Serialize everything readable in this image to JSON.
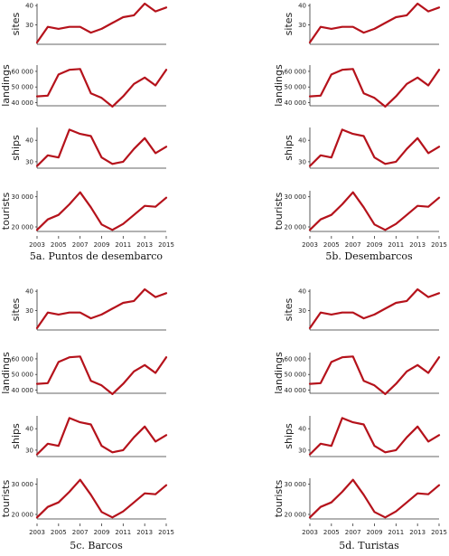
{
  "x_years": [
    2003,
    2004,
    2005,
    2006,
    2007,
    2008,
    2009,
    2010,
    2011,
    2012,
    2013,
    2014,
    2015
  ],
  "x_tick_labels": [
    "2003",
    "2005",
    "2007",
    "2009",
    "2011",
    "2013",
    "2015"
  ],
  "colors": {
    "line": "#b5121b",
    "axis": "#333333"
  },
  "chart_data": [
    {
      "id": "5a",
      "type": "line",
      "caption": "5a. Puntos de desembarco",
      "panels": [
        {
          "ylabel": "sites",
          "ylim": [
            20,
            41
          ],
          "yticks": [
            "30",
            "40"
          ],
          "series": [
            {
              "values": [
                21,
                29,
                28,
                29,
                29,
                26,
                28,
                31,
                34,
                35,
                41,
                37,
                39
              ]
            }
          ]
        },
        {
          "ylabel": "landings",
          "ylim": [
            38000,
            64000
          ],
          "yticks": [
            "40 000",
            "50 000",
            "60 000"
          ],
          "series": [
            {
              "values": [
                44000,
                44500,
                58000,
                61000,
                61500,
                46000,
                43000,
                37500,
                44000,
                52000,
                56000,
                51000,
                61000
              ]
            }
          ]
        },
        {
          "ylabel": "ships",
          "ylim": [
            27,
            46
          ],
          "yticks": [
            "30",
            "40"
          ],
          "series": [
            {
              "values": [
                28,
                33,
                32,
                45,
                43,
                42,
                32,
                29,
                30,
                36,
                41,
                34,
                37
              ]
            }
          ]
        },
        {
          "ylabel": "tourists",
          "ylim": [
            18500,
            32000
          ],
          "yticks": [
            "20 000",
            "30 000"
          ],
          "series": [
            {
              "values": [
                19000,
                22500,
                24000,
                27500,
                31500,
                26500,
                20800,
                19000,
                21000,
                24000,
                27000,
                26700,
                29700
              ]
            }
          ]
        }
      ]
    },
    {
      "id": "5b",
      "type": "line",
      "caption": "5b. Desembarcos",
      "panels": [
        {
          "ylabel": "sites",
          "ylim": [
            20,
            41
          ],
          "yticks": [
            "30",
            "40"
          ],
          "series": [
            {
              "values": [
                21,
                29,
                28,
                29,
                29,
                26,
                28,
                31,
                34,
                35,
                41,
                37,
                39
              ]
            }
          ]
        },
        {
          "ylabel": "landings",
          "ylim": [
            38000,
            64000
          ],
          "yticks": [
            "40 000",
            "50 000",
            "60 000"
          ],
          "series": [
            {
              "values": [
                44000,
                44500,
                58000,
                61000,
                61500,
                46000,
                43000,
                37500,
                44000,
                52000,
                56000,
                51000,
                61000
              ]
            }
          ]
        },
        {
          "ylabel": "ships",
          "ylim": [
            27,
            46
          ],
          "yticks": [
            "30",
            "40"
          ],
          "series": [
            {
              "values": [
                28,
                33,
                32,
                45,
                43,
                42,
                32,
                29,
                30,
                36,
                41,
                34,
                37
              ]
            }
          ]
        },
        {
          "ylabel": "tourists",
          "ylim": [
            18500,
            32000
          ],
          "yticks": [
            "20 000",
            "30 000"
          ],
          "series": [
            {
              "values": [
                19000,
                22500,
                24000,
                27500,
                31500,
                26500,
                20800,
                19000,
                21000,
                24000,
                27000,
                26700,
                29700
              ]
            }
          ]
        }
      ]
    },
    {
      "id": "5c",
      "type": "line",
      "caption": "5c. Barcos",
      "panels": [
        {
          "ylabel": "sites",
          "ylim": [
            20,
            41
          ],
          "yticks": [
            "30",
            "40"
          ],
          "series": [
            {
              "values": [
                21,
                29,
                28,
                29,
                29,
                26,
                28,
                31,
                34,
                35,
                41,
                37,
                39
              ]
            }
          ]
        },
        {
          "ylabel": "landings",
          "ylim": [
            38000,
            64000
          ],
          "yticks": [
            "40 000",
            "50 000",
            "60 000"
          ],
          "series": [
            {
              "values": [
                44000,
                44500,
                58000,
                61000,
                61500,
                46000,
                43000,
                37500,
                44000,
                52000,
                56000,
                51000,
                61000
              ]
            }
          ]
        },
        {
          "ylabel": "ships",
          "ylim": [
            27,
            46
          ],
          "yticks": [
            "30",
            "40"
          ],
          "series": [
            {
              "values": [
                28,
                33,
                32,
                45,
                43,
                42,
                32,
                29,
                30,
                36,
                41,
                34,
                37
              ]
            }
          ]
        },
        {
          "ylabel": "tourists",
          "ylim": [
            18500,
            32000
          ],
          "yticks": [
            "20 000",
            "30 000"
          ],
          "series": [
            {
              "values": [
                19000,
                22500,
                24000,
                27500,
                31500,
                26500,
                20800,
                19000,
                21000,
                24000,
                27000,
                26700,
                29700
              ]
            }
          ]
        }
      ]
    },
    {
      "id": "5d",
      "type": "line",
      "caption": "5d. Turistas",
      "panels": [
        {
          "ylabel": "sites",
          "ylim": [
            20,
            41
          ],
          "yticks": [
            "30",
            "40"
          ],
          "series": [
            {
              "values": [
                21,
                29,
                28,
                29,
                29,
                26,
                28,
                31,
                34,
                35,
                41,
                37,
                39
              ]
            }
          ]
        },
        {
          "ylabel": "landings",
          "ylim": [
            38000,
            64000
          ],
          "yticks": [
            "40 000",
            "50 000",
            "60 000"
          ],
          "series": [
            {
              "values": [
                44000,
                44500,
                58000,
                61000,
                61500,
                46000,
                43000,
                37500,
                44000,
                52000,
                56000,
                51000,
                61000
              ]
            }
          ]
        },
        {
          "ylabel": "ships",
          "ylim": [
            27,
            46
          ],
          "yticks": [
            "30",
            "40"
          ],
          "series": [
            {
              "values": [
                28,
                33,
                32,
                45,
                43,
                42,
                32,
                29,
                30,
                36,
                41,
                34,
                37
              ]
            }
          ]
        },
        {
          "ylabel": "tourists",
          "ylim": [
            18500,
            32000
          ],
          "yticks": [
            "20 000",
            "30 000"
          ],
          "series": [
            {
              "values": [
                19000,
                22500,
                24000,
                27500,
                31500,
                26500,
                20800,
                19000,
                21000,
                24000,
                27000,
                26700,
                29700
              ]
            }
          ]
        }
      ]
    }
  ]
}
